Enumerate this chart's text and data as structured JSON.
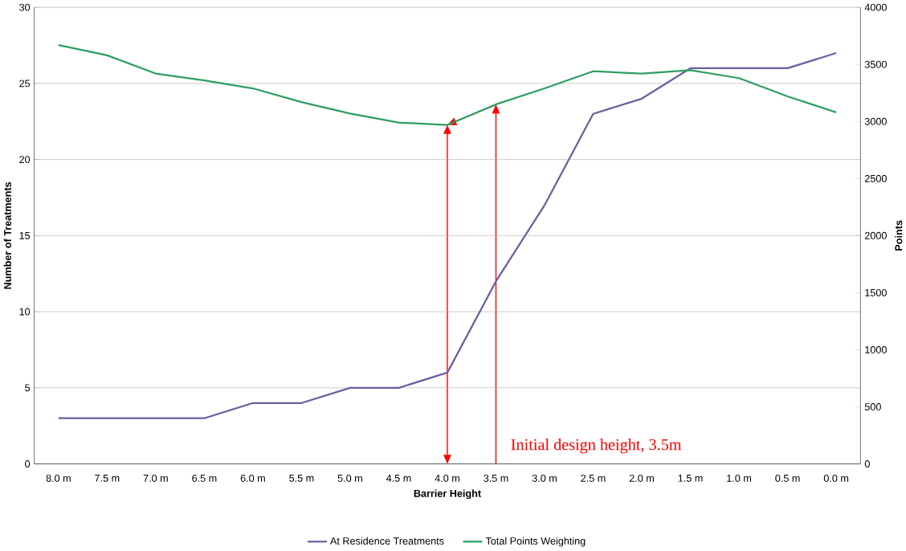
{
  "chart_data": {
    "type": "line",
    "xlabel": "Barrier Height",
    "ylabel": "Number of Treatments",
    "y2label": "Points",
    "categories": [
      "8.0 m",
      "7.5 m",
      "7.0 m",
      "6.5 m",
      "6.0 m",
      "5.5 m",
      "5.0 m",
      "4.5 m",
      "4.0 m",
      "3.5 m",
      "3.0 m",
      "2.5 m",
      "2.0 m",
      "1.5 m",
      "1.0 m",
      "0.5 m",
      "0.0 m"
    ],
    "series": [
      {
        "name": "At Residence Treatments",
        "color": "#6a5fa0",
        "values": [
          3,
          3,
          3,
          3,
          4,
          4,
          5,
          5,
          6,
          12,
          17,
          23,
          24,
          26,
          26,
          26,
          27
        ]
      },
      {
        "name": "Total Points Weighting",
        "color": "#2e9e63",
        "axis": "y2",
        "values": [
          3670,
          3580,
          3420,
          3360,
          3290,
          3170,
          3070,
          2990,
          2970,
          3150,
          3290,
          3440,
          3420,
          3450,
          3380,
          3220,
          3080
        ]
      }
    ],
    "ylim": [
      0,
      30
    ],
    "yticks": [
      0,
      5,
      10,
      15,
      20,
      25,
      30
    ],
    "y2lim": [
      0,
      4000
    ],
    "y2ticks": [
      0,
      500,
      1000,
      1500,
      2000,
      2500,
      3000,
      3500,
      4000
    ],
    "grid": "y",
    "legend": "bottom",
    "marker": "none",
    "line_style": "solid",
    "annotations": [
      "Initial design height, 3.5m"
    ]
  }
}
